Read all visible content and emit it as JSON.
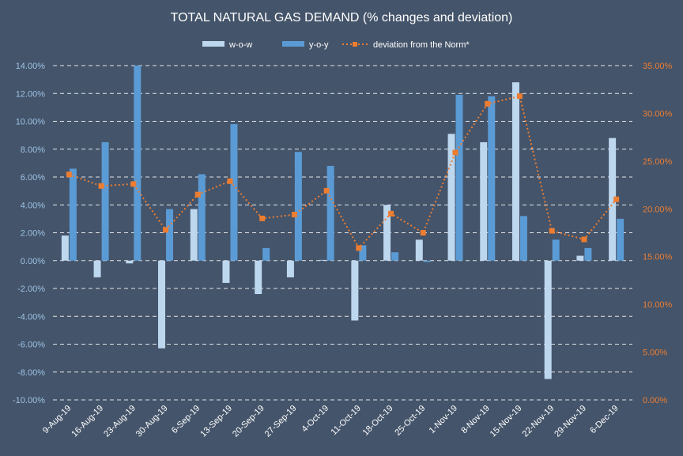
{
  "chart_data": {
    "type": "bar",
    "title": "TOTAL NATURAL GAS DEMAND (% changes and deviation)",
    "categories": [
      "9-Aug-19",
      "16-Aug-19",
      "23-Aug-19",
      "30-Aug-19",
      "6-Sep-19",
      "13-Sep-19",
      "20-Sep-19",
      "27-Sep-19",
      "4-Oct-19",
      "11-Oct-19",
      "18-Oct-19",
      "25-Oct-19",
      "1-Nov-19",
      "8-Nov-19",
      "15-Nov-19",
      "22-Nov-19",
      "29-Nov-19",
      "6-Dec-19"
    ],
    "series": [
      {
        "name": "w-o-w",
        "type": "bar",
        "axis": "left",
        "color": "#bdd7ee",
        "values": [
          1.8,
          -1.2,
          -0.2,
          -6.3,
          3.7,
          -1.6,
          -2.4,
          -1.2,
          0.05,
          -4.3,
          4.0,
          1.5,
          9.1,
          8.5,
          12.8,
          -8.5,
          0.35,
          8.8
        ]
      },
      {
        "name": "y-o-y",
        "type": "bar",
        "axis": "left",
        "color": "#5b9bd5",
        "values": [
          6.6,
          8.5,
          14.0,
          3.7,
          6.2,
          9.8,
          0.9,
          7.8,
          6.8,
          1.1,
          0.6,
          -0.1,
          11.9,
          11.8,
          3.2,
          1.5,
          0.9,
          3.0
        ]
      },
      {
        "name": "deviation from the Norm*",
        "type": "line",
        "axis": "right",
        "color": "#ed7d31",
        "values": [
          23.6,
          22.4,
          22.6,
          17.8,
          21.5,
          22.9,
          19.0,
          19.4,
          21.9,
          15.9,
          19.5,
          17.5,
          25.9,
          31.0,
          31.8,
          17.7,
          16.8,
          21.0
        ]
      }
    ],
    "left_axis": {
      "min": -10,
      "max": 14,
      "step": 2,
      "tick_labels": [
        "14.00%",
        "12.00%",
        "10.00%",
        "8.00%",
        "6.00%",
        "4.00%",
        "2.00%",
        "0.00%",
        "-2.00%",
        "-4.00%",
        "-6.00%",
        "-8.00%",
        "-10.00%"
      ]
    },
    "right_axis": {
      "min": 0,
      "max": 35,
      "step": 5,
      "tick_labels": [
        "35.00%",
        "30.00%",
        "25.00%",
        "20.00%",
        "15.00%",
        "10.00%",
        "5.00%",
        "0.00%"
      ]
    },
    "legend_position": "top-center",
    "grid": "horizontal-dashed"
  }
}
